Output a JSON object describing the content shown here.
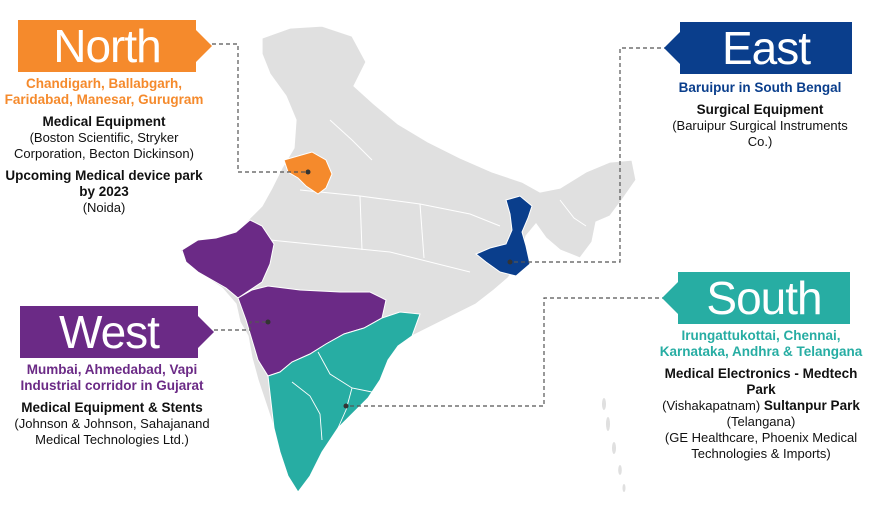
{
  "colors": {
    "north": "#F58A2C",
    "east": "#0A3E8C",
    "west": "#6B2A86",
    "south": "#27ADA3",
    "land": "#E0E0E0",
    "border": "#FFFFFF",
    "connector": "#555555"
  },
  "north": {
    "label": "North",
    "cities": "Chandigarh, Ballabgarh, Faridabad, Manesar, Gurugram",
    "item1_head": "Medical Equipment",
    "item1_detail": "(Boston Scientific, Stryker Corporation, Becton Dickinson)",
    "item2_head": "Upcoming Medical device park by 2023",
    "item2_detail": "(Noida)"
  },
  "east": {
    "label": "East",
    "cities": "Baruipur in South Bengal",
    "item1_head": "Surgical Equipment",
    "item1_detail": "(Baruipur Surgical Instruments Co.)"
  },
  "west": {
    "label": "West",
    "cities": "Mumbai, Ahmedabad, Vapi Industrial corridor in Gujarat",
    "item1_head": "Medical Equipment & Stents",
    "item1_detail": "(Johnson & Johnson, Sahajanand Medical Technologies Ltd.)"
  },
  "south": {
    "label": "South",
    "cities": "Irungattukottai, Chennai, Karnataka, Andhra & Telangana",
    "item1_head": "Medical Electronics - Medtech Park",
    "item1_detail": "(Vishakapatnam)",
    "item2_head": "Sultanpur Park",
    "item2_detail": "(Telangana)",
    "item3_detail": "(GE Healthcare, Phoenix Medical Technologies & Imports)"
  }
}
